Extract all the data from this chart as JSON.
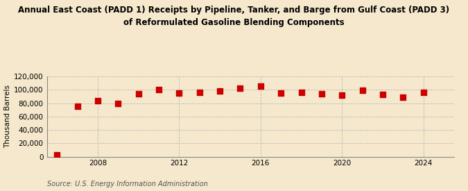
{
  "title": "Annual East Coast (PADD 1) Receipts by Pipeline, Tanker, and Barge from Gulf Coast (PADD 3)\nof Reformulated Gasoline Blending Components",
  "ylabel": "Thousand Barrels",
  "source": "Source: U.S. Energy Information Administration",
  "background_color": "#f5e8cc",
  "years": [
    2006,
    2007,
    2008,
    2009,
    2010,
    2011,
    2012,
    2013,
    2014,
    2015,
    2016,
    2017,
    2018,
    2019,
    2020,
    2021,
    2022,
    2023,
    2024
  ],
  "values": [
    3000,
    75000,
    84000,
    80000,
    94000,
    100000,
    95000,
    96000,
    98000,
    102000,
    105000,
    95000,
    96000,
    94000,
    92000,
    99000,
    93000,
    89000,
    96000
  ],
  "marker_color": "#cc0000",
  "marker_size": 36,
  "ylim": [
    0,
    120000
  ],
  "yticks": [
    0,
    20000,
    40000,
    60000,
    80000,
    100000,
    120000
  ],
  "xticks": [
    2008,
    2012,
    2016,
    2020,
    2024
  ],
  "grid_color": "#bbbbbb",
  "title_fontsize": 8.5,
  "axis_fontsize": 7.5,
  "source_fontsize": 7
}
